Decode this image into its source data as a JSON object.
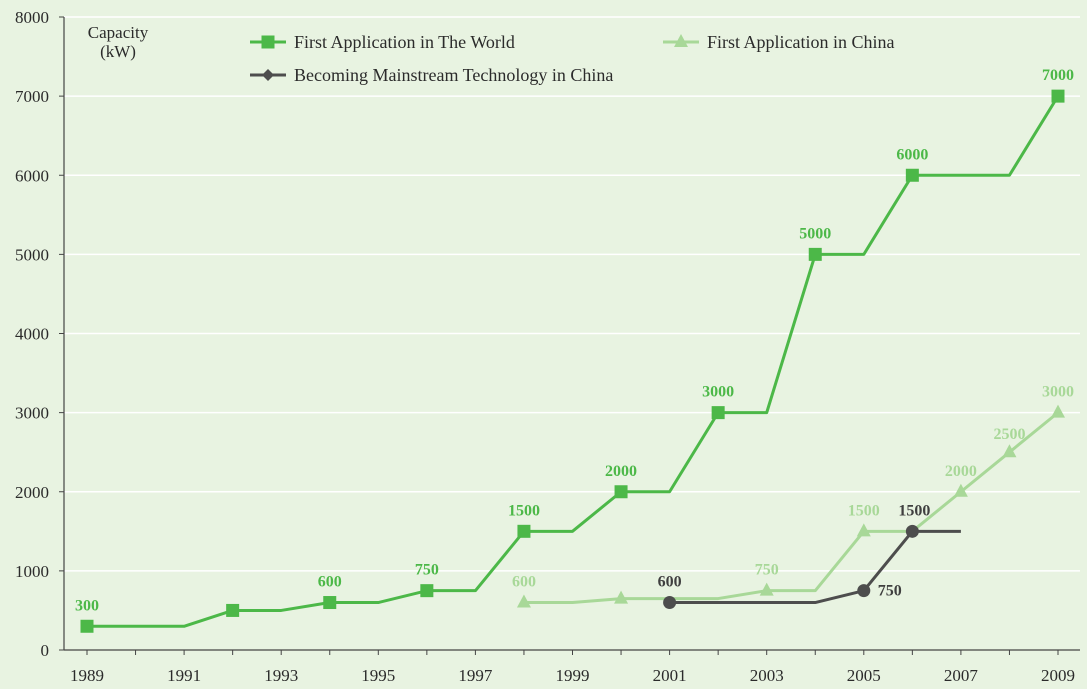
{
  "chart_data": {
    "type": "line",
    "ylabel": [
      "Capacity",
      "(kW)"
    ],
    "ylim": [
      0,
      8000
    ],
    "yticks": [
      "0",
      "1000",
      "2000",
      "3000",
      "4000",
      "5000",
      "6000",
      "7000",
      "8000"
    ],
    "xlim": [
      1989,
      2009
    ],
    "xticks": [
      "1989",
      "1991",
      "1993",
      "1995",
      "1997",
      "1999",
      "2001",
      "2003",
      "2005",
      "2007",
      "2009"
    ],
    "grid": "horizontal",
    "legend_placement": "top",
    "series": [
      {
        "name": "First Application in The World",
        "color": "#4cb848",
        "marker": "square",
        "points": [
          [
            1989,
            300
          ],
          [
            1991,
            300
          ],
          [
            1992,
            500
          ],
          [
            1993,
            500
          ],
          [
            1994,
            600
          ],
          [
            1995,
            600
          ],
          [
            1996,
            750
          ],
          [
            1997,
            750
          ],
          [
            1998,
            1500
          ],
          [
            1999,
            1500
          ],
          [
            2000,
            2000
          ],
          [
            2001,
            2000
          ],
          [
            2002,
            3000
          ],
          [
            2003,
            3000
          ],
          [
            2004,
            5000
          ],
          [
            2005,
            5000
          ],
          [
            2006,
            6000
          ],
          [
            2008,
            6000
          ],
          [
            2009,
            7000
          ]
        ],
        "marker_x": [
          1989,
          1992,
          1994,
          1996,
          1998,
          2000,
          2002,
          2004,
          2006,
          2009
        ],
        "labels": [
          {
            "x": 1989,
            "y": 300,
            "text": "300"
          },
          {
            "x": 1994,
            "y": 600,
            "text": "600"
          },
          {
            "x": 1996,
            "y": 750,
            "text": "750"
          },
          {
            "x": 1998,
            "y": 1500,
            "text": "1500"
          },
          {
            "x": 2000,
            "y": 2000,
            "text": "2000"
          },
          {
            "x": 2002,
            "y": 3000,
            "text": "3000"
          },
          {
            "x": 2004,
            "y": 5000,
            "text": "5000"
          },
          {
            "x": 2006,
            "y": 6000,
            "text": "6000"
          },
          {
            "x": 2009,
            "y": 7000,
            "text": "7000"
          }
        ]
      },
      {
        "name": "First Application in China",
        "color": "#a8d898",
        "marker": "triangle",
        "points": [
          [
            1998,
            600
          ],
          [
            1999,
            600
          ],
          [
            2000,
            650
          ],
          [
            2002,
            650
          ],
          [
            2003,
            750
          ],
          [
            2004,
            750
          ],
          [
            2005,
            1500
          ],
          [
            2006,
            1500
          ],
          [
            2007,
            2000
          ],
          [
            2008,
            2500
          ],
          [
            2009,
            3000
          ]
        ],
        "marker_x": [
          1998,
          2000,
          2003,
          2005,
          2007,
          2008,
          2009
        ],
        "labels": [
          {
            "x": 1998,
            "y": 600,
            "text": "600"
          },
          {
            "x": 2003,
            "y": 750,
            "text": "750"
          },
          {
            "x": 2005,
            "y": 1500,
            "text": "1500"
          },
          {
            "x": 2007,
            "y": 2000,
            "text": "2000"
          },
          {
            "x": 2008,
            "y": 2500,
            "text": "2500"
          },
          {
            "x": 2009,
            "y": 3000,
            "text": "3000"
          }
        ]
      },
      {
        "name": "Becoming Mainstream Technology in China",
        "color": "#4d4d4d",
        "marker": "circle",
        "points": [
          [
            2001,
            600
          ],
          [
            2004,
            600
          ],
          [
            2005,
            750
          ],
          [
            2006,
            1500
          ],
          [
            2007,
            1500
          ]
        ],
        "marker_x": [
          2001,
          2005,
          2006
        ],
        "labels": [
          {
            "x": 2001,
            "y": 600,
            "text": "600"
          },
          {
            "x": 2005,
            "y": 750,
            "text": "750"
          },
          {
            "x": 2006,
            "y": 1500,
            "text": "1500"
          }
        ]
      }
    ]
  }
}
